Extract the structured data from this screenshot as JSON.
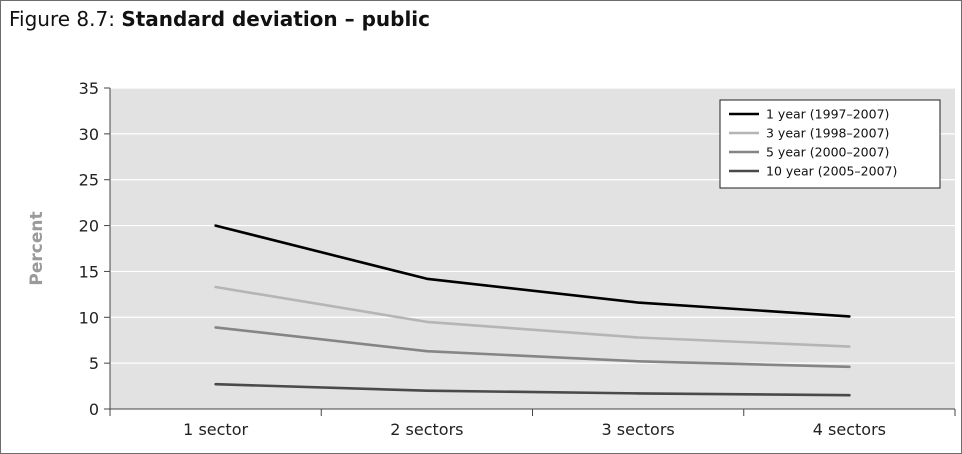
{
  "figure": {
    "label": "Figure 8.7: ",
    "title": "Standard deviation – public"
  },
  "chart_data": {
    "type": "line",
    "title": "Standard deviation – public",
    "xlabel": "",
    "ylabel": "Percent",
    "categories": [
      "1 sector",
      "2 sectors",
      "3 sectors",
      "4 sectors"
    ],
    "ylim": [
      0,
      35
    ],
    "yticks": [
      0,
      5,
      10,
      15,
      20,
      25,
      30,
      35
    ],
    "grid": true,
    "legend_position": "top-right",
    "series": [
      {
        "name": "1 year (1997–2007)",
        "color": "#000000",
        "values": [
          20.0,
          14.2,
          11.6,
          10.1
        ]
      },
      {
        "name": "3 year (1998–2007)",
        "color": "#b5b5b5",
        "values": [
          13.3,
          9.5,
          7.8,
          6.8
        ]
      },
      {
        "name": "5 year (2000–2007)",
        "color": "#858585",
        "values": [
          8.9,
          6.3,
          5.2,
          4.6
        ]
      },
      {
        "name": "10 year (2005–2007)",
        "color": "#4a4a4a",
        "values": [
          2.7,
          2.0,
          1.7,
          1.5
        ]
      }
    ]
  }
}
